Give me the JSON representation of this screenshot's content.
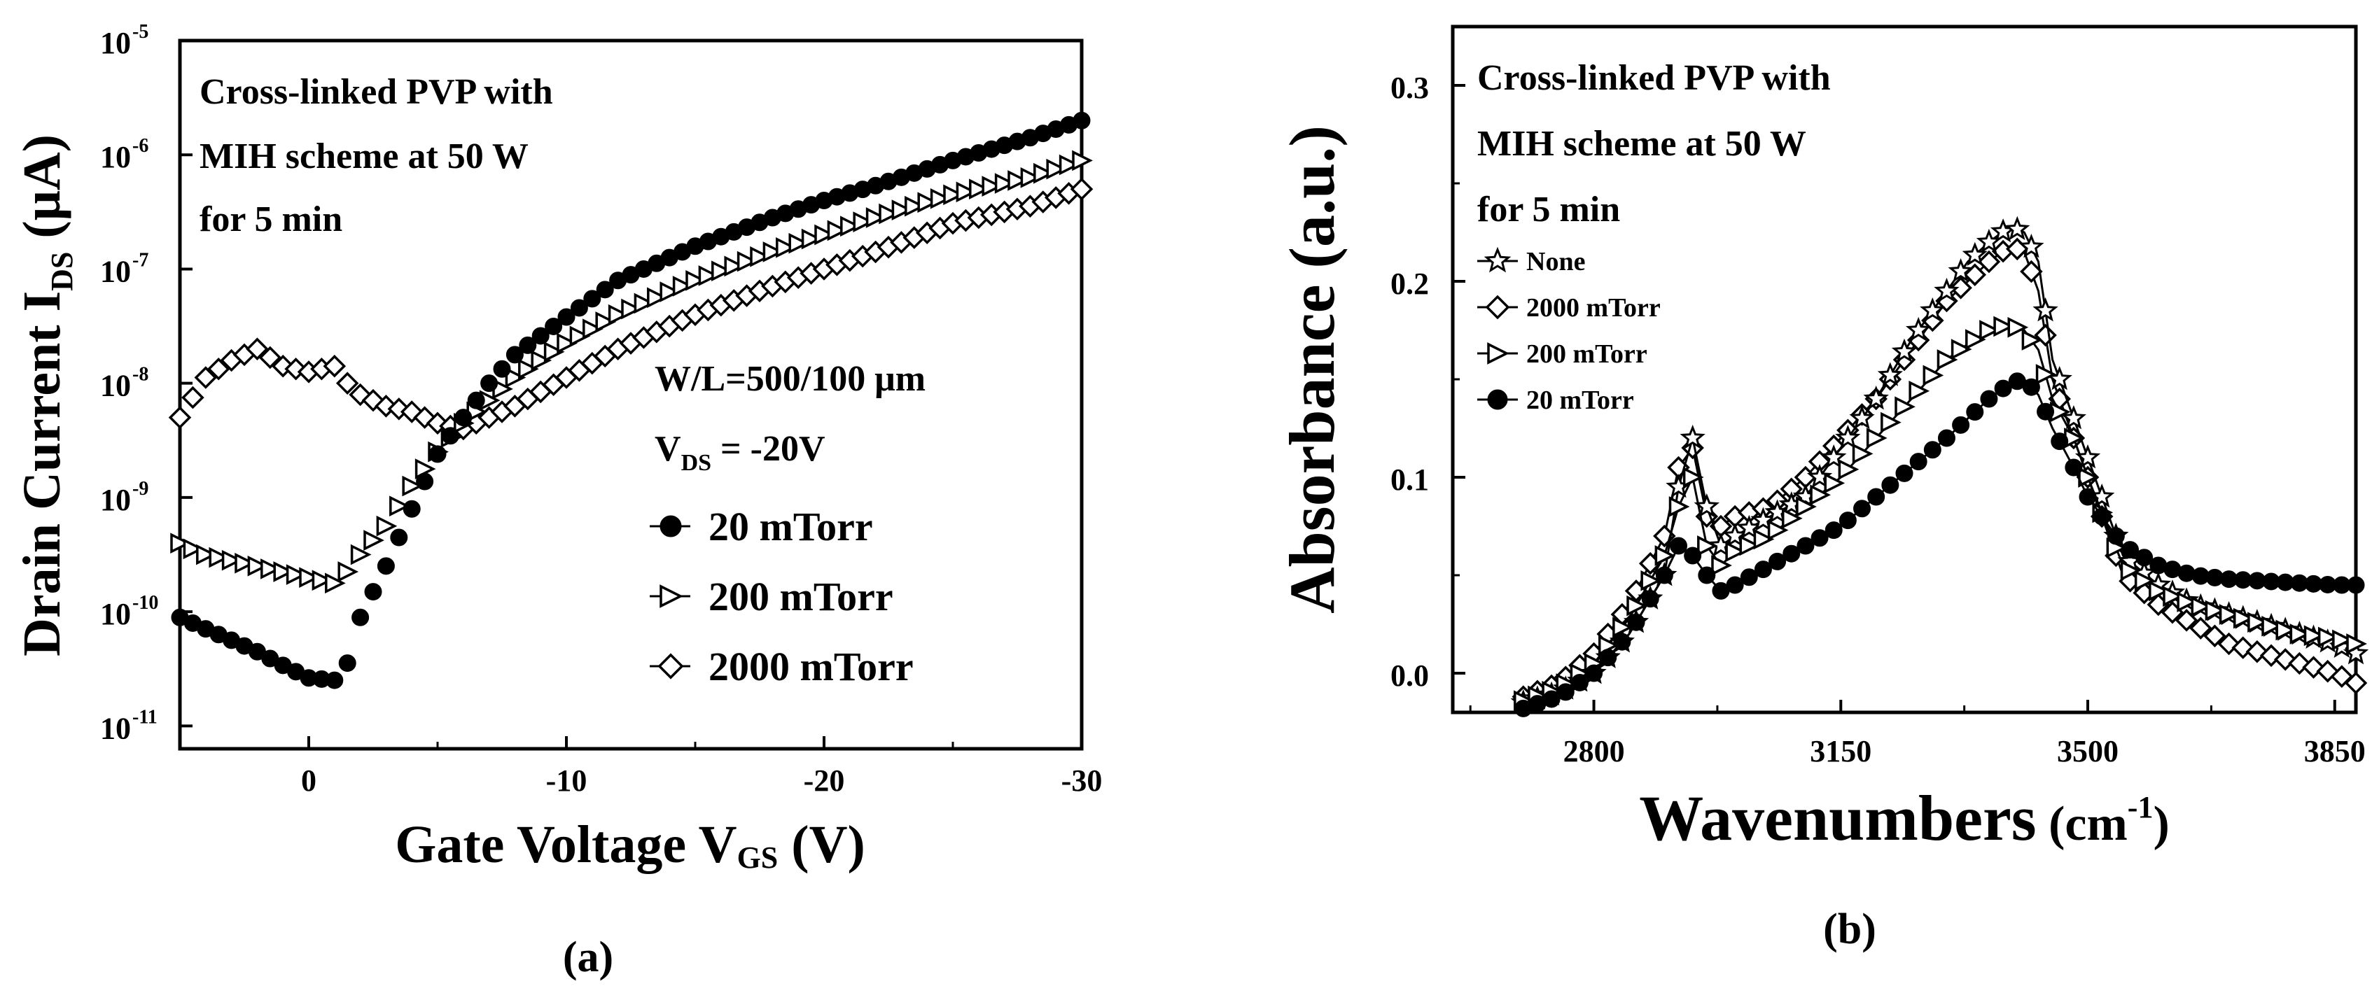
{
  "chart_data": [
    {
      "type": "scatter",
      "panel_label": "(a)",
      "title_lines": [
        "Cross-linked PVP with",
        "MIH scheme at 50 W",
        "for 5 min"
      ],
      "xlabel": {
        "main": "Gate Voltage V",
        "sub": "GS",
        "unit": " (V)"
      },
      "ylabel": {
        "main": "Drain Current I",
        "sub": "DS",
        "unit": " (μA)"
      },
      "xlim": [
        5,
        -30
      ],
      "ylim_log10": [
        -11.2,
        -5
      ],
      "yscale": "log",
      "x_ticks": [
        0,
        -10,
        -20,
        -30
      ],
      "x_tick_labels": [
        "0",
        "-10",
        "-20",
        "-30"
      ],
      "y_ticks": [
        -11,
        -10,
        -9,
        -8,
        -7,
        -6,
        -5
      ],
      "y_tick_labels": [
        "-11",
        "-10",
        "-9",
        "-8",
        "-7",
        "-6",
        "-5"
      ],
      "y_tick_base": "10",
      "conditions": [
        {
          "main": "W/L=500/100 μm",
          "sub": "",
          "tail": ""
        },
        {
          "main": "V",
          "sub": "DS",
          "tail": " = -20V"
        }
      ],
      "series": [
        {
          "name": "20 mTorr",
          "marker": "circle-filled",
          "x": [
            5,
            4,
            3,
            2,
            1,
            0,
            -1,
            -1.5,
            -2,
            -3,
            -4,
            -5,
            -6,
            -7,
            -8,
            -10,
            -12,
            -15,
            -18,
            -20,
            -22,
            -25,
            -28,
            -30
          ],
          "log10": [
            -10.05,
            -10.15,
            -10.25,
            -10.35,
            -10.47,
            -10.58,
            -10.6,
            -10.45,
            -10.05,
            -9.6,
            -9.1,
            -8.62,
            -8.3,
            -8.0,
            -7.75,
            -7.42,
            -7.1,
            -6.8,
            -6.55,
            -6.4,
            -6.27,
            -6.05,
            -5.85,
            -5.7
          ]
        },
        {
          "name": "200 mTorr",
          "marker": "triangle-right-open",
          "x": [
            5,
            4,
            3,
            2,
            1,
            0,
            -1,
            -1.5,
            -2,
            -3,
            -4,
            -5,
            -6,
            -7,
            -8,
            -10,
            -12,
            -15,
            -18,
            -20,
            -22,
            -25,
            -28,
            -30
          ],
          "log10": [
            -9.4,
            -9.5,
            -9.55,
            -9.6,
            -9.65,
            -9.7,
            -9.75,
            -9.65,
            -9.5,
            -9.25,
            -8.9,
            -8.6,
            -8.35,
            -8.15,
            -7.95,
            -7.65,
            -7.4,
            -7.1,
            -6.85,
            -6.7,
            -6.55,
            -6.35,
            -6.2,
            -6.05
          ]
        },
        {
          "name": "2000 mTorr",
          "marker": "diamond-open",
          "x": [
            5,
            4,
            3,
            2,
            1,
            0,
            -1,
            -1.5,
            -2,
            -3,
            -4,
            -5,
            -6,
            -7,
            -8,
            -10,
            -12,
            -15,
            -18,
            -20,
            -22,
            -25,
            -28,
            -30
          ],
          "log10": [
            -8.3,
            -7.95,
            -7.8,
            -7.7,
            -7.85,
            -7.9,
            -7.85,
            -8.0,
            -8.1,
            -8.2,
            -8.25,
            -8.35,
            -8.4,
            -8.3,
            -8.2,
            -7.95,
            -7.7,
            -7.4,
            -7.15,
            -7.0,
            -6.85,
            -6.6,
            -6.45,
            -6.3
          ]
        }
      ]
    },
    {
      "type": "line",
      "panel_label": "(b)",
      "title_lines": [
        "Cross-linked PVP with",
        "MIH scheme at 50 W",
        "for 5 min"
      ],
      "xlabel": {
        "main": "Wavenumbers",
        "unit": " (cm",
        "sup": "-1",
        "close": ")"
      },
      "ylabel": "Absorbance (a.u.)",
      "xlim": [
        2600,
        3880
      ],
      "ylim": [
        -0.02,
        0.33
      ],
      "x_ticks": [
        2800,
        3150,
        3500,
        3850
      ],
      "y_ticks": [
        0.0,
        0.1,
        0.2,
        0.3
      ],
      "y_tick_labels": [
        "0.0",
        "0.1",
        "0.2",
        "0.3"
      ],
      "series": [
        {
          "name": "None",
          "marker": "star-open",
          "x": [
            2700,
            2750,
            2800,
            2850,
            2900,
            2920,
            2940,
            2960,
            2980,
            3000,
            3050,
            3100,
            3150,
            3200,
            3250,
            3300,
            3330,
            3360,
            3390,
            3410,
            3430,
            3450,
            3480,
            3500,
            3550,
            3600,
            3650,
            3700,
            3750,
            3800,
            3850,
            3880
          ],
          "y": [
            -0.015,
            -0.01,
            0.0,
            0.02,
            0.05,
            0.095,
            0.12,
            0.085,
            0.065,
            0.07,
            0.08,
            0.09,
            0.115,
            0.14,
            0.17,
            0.195,
            0.21,
            0.22,
            0.228,
            0.225,
            0.21,
            0.16,
            0.13,
            0.11,
            0.06,
            0.045,
            0.035,
            0.03,
            0.025,
            0.02,
            0.015,
            0.01
          ]
        },
        {
          "name": "2000 mTorr",
          "marker": "diamond-open",
          "x": [
            2700,
            2750,
            2800,
            2850,
            2900,
            2920,
            2940,
            2960,
            2980,
            3000,
            3050,
            3100,
            3150,
            3200,
            3250,
            3300,
            3330,
            3360,
            3390,
            3410,
            3430,
            3450,
            3480,
            3500,
            3550,
            3600,
            3650,
            3700,
            3750,
            3800,
            3850,
            3880
          ],
          "y": [
            -0.012,
            -0.005,
            0.01,
            0.035,
            0.07,
            0.105,
            0.115,
            0.08,
            0.075,
            0.08,
            0.085,
            0.1,
            0.12,
            0.14,
            0.165,
            0.19,
            0.2,
            0.21,
            0.218,
            0.215,
            0.195,
            0.15,
            0.12,
            0.1,
            0.05,
            0.035,
            0.025,
            0.015,
            0.01,
            0.005,
            0.0,
            -0.005
          ]
        },
        {
          "name": "200 mTorr",
          "marker": "triangle-right-open",
          "x": [
            2700,
            2750,
            2800,
            2850,
            2900,
            2920,
            2940,
            2960,
            2980,
            3000,
            3050,
            3100,
            3150,
            3200,
            3250,
            3300,
            3330,
            3360,
            3390,
            3410,
            3430,
            3450,
            3480,
            3500,
            3550,
            3600,
            3650,
            3700,
            3750,
            3800,
            3850,
            3880
          ],
          "y": [
            -0.014,
            -0.008,
            0.005,
            0.028,
            0.06,
            0.085,
            0.1,
            0.065,
            0.055,
            0.062,
            0.07,
            0.085,
            0.1,
            0.12,
            0.14,
            0.16,
            0.168,
            0.175,
            0.178,
            0.175,
            0.165,
            0.14,
            0.12,
            0.1,
            0.055,
            0.042,
            0.035,
            0.03,
            0.025,
            0.02,
            0.018,
            0.015
          ]
        },
        {
          "name": "20 mTorr",
          "marker": "circle-filled",
          "x": [
            2700,
            2750,
            2800,
            2850,
            2900,
            2920,
            2940,
            2960,
            2980,
            3000,
            3050,
            3100,
            3150,
            3200,
            3250,
            3300,
            3330,
            3360,
            3390,
            3410,
            3430,
            3450,
            3480,
            3500,
            3550,
            3600,
            3650,
            3700,
            3750,
            3800,
            3850,
            3880
          ],
          "y": [
            -0.018,
            -0.012,
            0.0,
            0.02,
            0.05,
            0.065,
            0.06,
            0.05,
            0.042,
            0.045,
            0.055,
            0.065,
            0.075,
            0.09,
            0.105,
            0.12,
            0.13,
            0.14,
            0.148,
            0.15,
            0.142,
            0.125,
            0.105,
            0.09,
            0.065,
            0.055,
            0.05,
            0.048,
            0.047,
            0.046,
            0.045,
            0.045
          ]
        }
      ]
    }
  ]
}
